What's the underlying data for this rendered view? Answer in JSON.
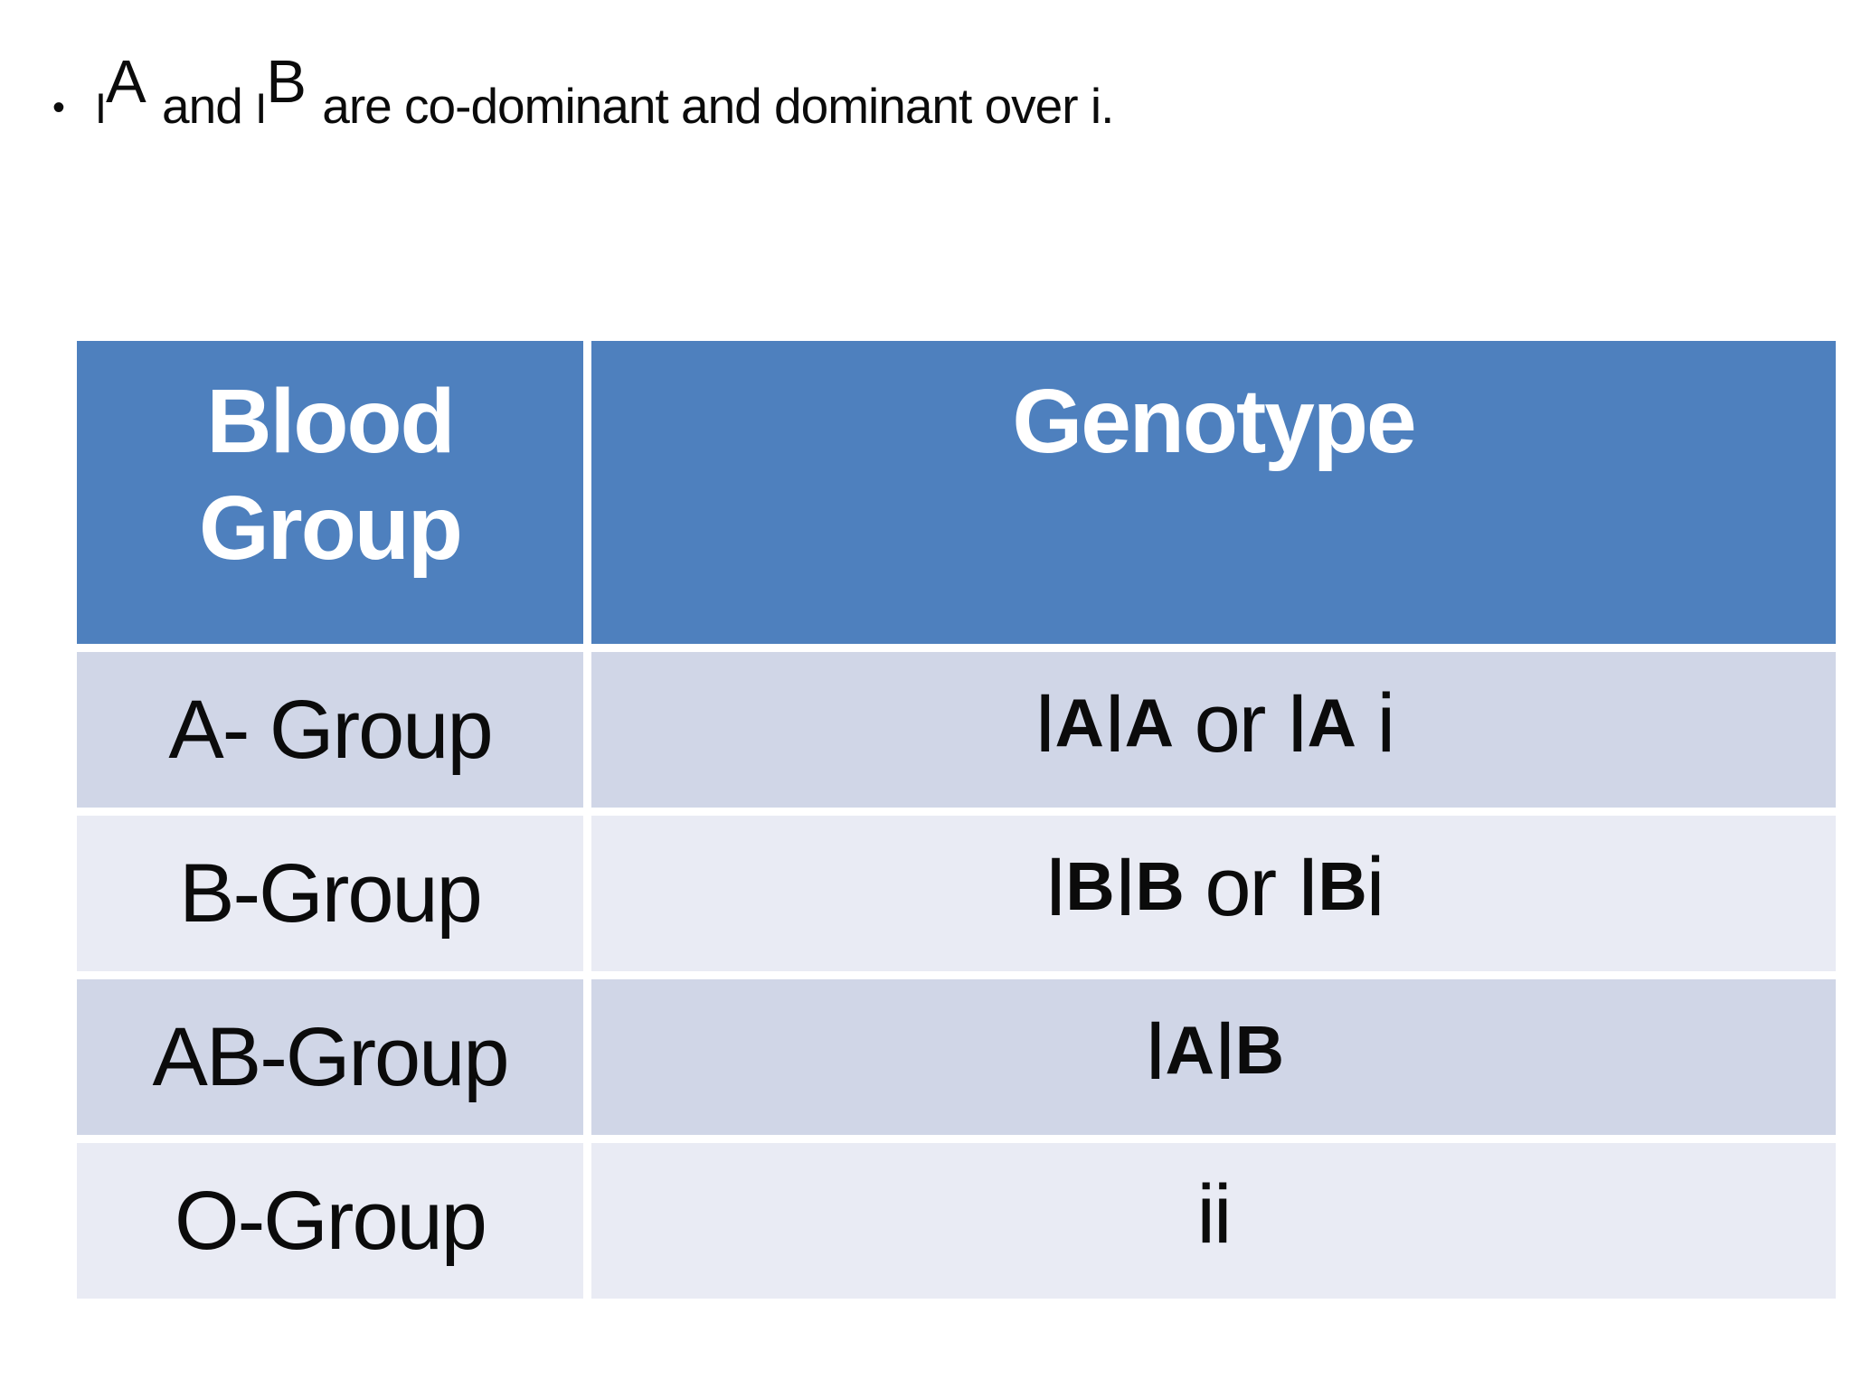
{
  "slide": {
    "colors": {
      "header_bg": "#4e80be",
      "band_dark": "#d0d6e7",
      "band_light": "#e9ebf4",
      "header_text": "#ffffff",
      "body_text": "#0b0b0b",
      "slide_bg": "#ffffff"
    },
    "bullet_point": {
      "marker": "•",
      "segments": [
        {
          "text": "I",
          "kind": "allele-i"
        },
        {
          "text": "A",
          "kind": "sup"
        },
        {
          "text": " and ",
          "kind": "plain"
        },
        {
          "text": "I",
          "kind": "allele-i"
        },
        {
          "text": "B",
          "kind": "sup"
        },
        {
          "text": " are co-dominant and dominant over i.",
          "kind": "plain"
        }
      ]
    },
    "table": {
      "columns": [
        "Blood Group",
        "Genotype"
      ],
      "rows": [
        {
          "blood_group": "A- Group",
          "genotype_segments": [
            {
              "text": "I",
              "kind": "plain"
            },
            {
              "text": "A",
              "kind": "sup"
            },
            {
              "text": "I",
              "kind": "plain"
            },
            {
              "text": "A",
              "kind": "sup"
            },
            {
              "text": " or ",
              "kind": "plain"
            },
            {
              "text": "I",
              "kind": "plain"
            },
            {
              "text": "A",
              "kind": "sup"
            },
            {
              "text": " i",
              "kind": "plain"
            }
          ]
        },
        {
          "blood_group": "B-Group",
          "genotype_segments": [
            {
              "text": "I",
              "kind": "plain"
            },
            {
              "text": "B",
              "kind": "sup"
            },
            {
              "text": "I",
              "kind": "plain"
            },
            {
              "text": "B",
              "kind": "sup"
            },
            {
              "text": " or ",
              "kind": "plain"
            },
            {
              "text": "I",
              "kind": "plain"
            },
            {
              "text": "B",
              "kind": "sup"
            },
            {
              "text": "i",
              "kind": "plain"
            }
          ]
        },
        {
          "blood_group": "AB-Group",
          "genotype_segments": [
            {
              "text": "I",
              "kind": "plain"
            },
            {
              "text": "A",
              "kind": "sup"
            },
            {
              "text": "I",
              "kind": "plain"
            },
            {
              "text": "B",
              "kind": "sup"
            }
          ]
        },
        {
          "blood_group": "O-Group",
          "genotype_segments": [
            {
              "text": "ii",
              "kind": "plain"
            }
          ]
        }
      ]
    }
  }
}
